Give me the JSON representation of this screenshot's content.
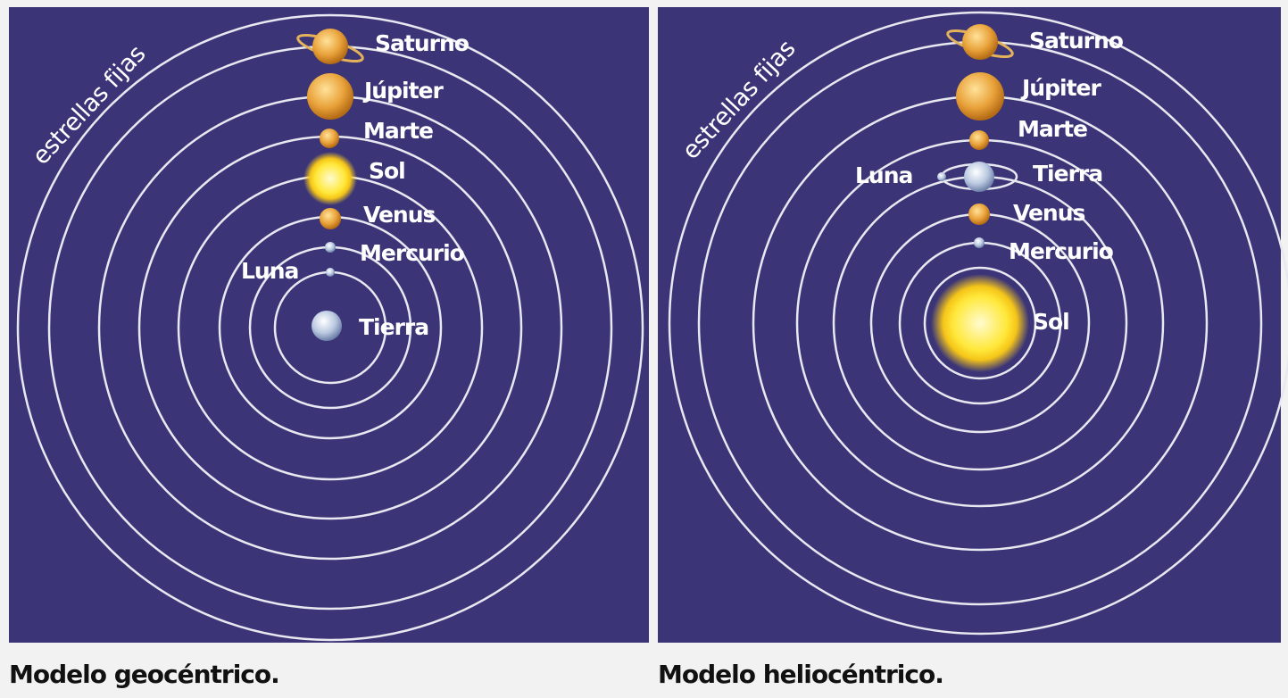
{
  "panels": [
    {
      "ring_label": "estrellas fijas",
      "caption": "Modelo geocéntrico.",
      "bodies": [
        {
          "label": "Saturno"
        },
        {
          "label": "Júpiter"
        },
        {
          "label": "Marte"
        },
        {
          "label": "Sol"
        },
        {
          "label": "Venus"
        },
        {
          "label": "Mercurio"
        },
        {
          "label": "Luna"
        },
        {
          "label": "Tierra"
        }
      ]
    },
    {
      "ring_label": "estrellas fijas",
      "caption": "Modelo heliocéntrico.",
      "bodies": [
        {
          "label": "Saturno"
        },
        {
          "label": "Júpiter"
        },
        {
          "label": "Marte"
        },
        {
          "label": "Luna"
        },
        {
          "label": "Tierra"
        },
        {
          "label": "Venus"
        },
        {
          "label": "Mercurio"
        },
        {
          "label": "Sol"
        }
      ]
    }
  ]
}
